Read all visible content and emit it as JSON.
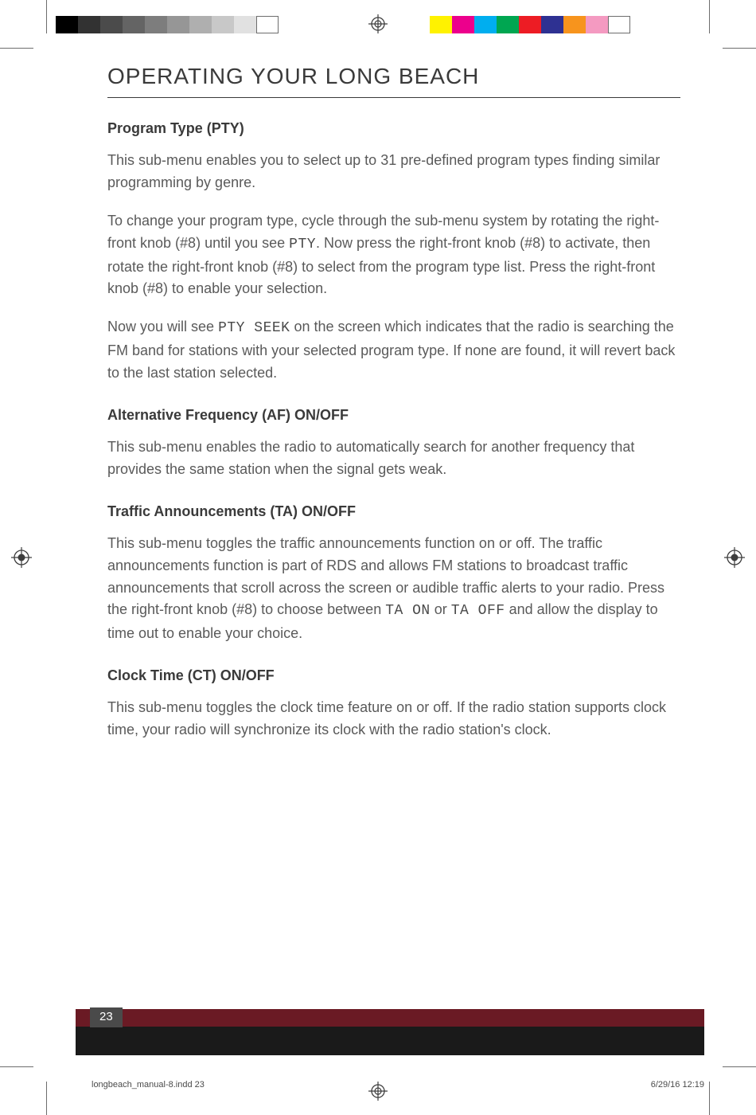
{
  "print_marks": {
    "gray_bar": [
      "#000000",
      "#323232",
      "#4b4b4b",
      "#646464",
      "#7d7d7d",
      "#969696",
      "#afafaf",
      "#c8c8c8",
      "#e1e1e1"
    ],
    "color_bar": [
      "#fff200",
      "#ec008c",
      "#00aeef",
      "#00a651",
      "#ed1c24",
      "#2e3192",
      "#f7941d",
      "#f49ac1"
    ],
    "reg_color": "#3d3d3d"
  },
  "page": {
    "title": "OPERATING YOUR LONG BEACH",
    "sections": [
      {
        "heading": "Program Type (PTY)",
        "paras": [
          {
            "html": "This sub-menu enables you to select up to 31 pre-defined program types finding similar programming by genre."
          },
          {
            "html": "To change your program type, cycle through the sub-menu system by rotating the right-front knob (#8) until you see <span class='display-code'>PTY</span>. Now press the right-front knob (#8) to activate, then rotate the right-front knob (#8) to select from the program type list. Press the right-front knob (#8) to enable your selection."
          },
          {
            "html": "Now you will see <span class='display-code'>PTY SEEK</span> on the screen which indicates that the radio is searching the FM band for stations with your selected program type. If none are found, it will revert back to the last station selected."
          }
        ]
      },
      {
        "heading": "Alternative Frequency (AF) ON/OFF",
        "paras": [
          {
            "html": "This sub-menu enables the radio to automatically search for another frequency that provides the same station when the signal gets weak."
          }
        ]
      },
      {
        "heading": "Traffic Announcements (TA) ON/OFF",
        "paras": [
          {
            "html": "This sub-menu toggles the traffic announcements function on or off. The traffic announcements function is part of RDS and allows FM stations to broadcast traffic announcements that scroll across the screen or audible traffic alerts to your radio. Press the right-front knob (#8) to choose between <span class='display-code'>TA ON</span> or <span class='display-code'>TA OFF</span> and allow the display to time out to enable your choice."
          }
        ]
      },
      {
        "heading": "Clock Time (CT) ON/OFF",
        "paras": [
          {
            "html": "This sub-menu toggles the clock time feature on or off. If the radio station supports clock time, your radio will synchronize its clock with the radio station's clock."
          }
        ]
      }
    ]
  },
  "footer": {
    "page_number": "23",
    "slug_file": "longbeach_manual-8.indd   23",
    "slug_date": "6/29/16   12:19",
    "band_top_color": "#6a1a24",
    "band_bottom_color": "#1a1a1a",
    "page_num_bg": "#4a4a4a"
  }
}
